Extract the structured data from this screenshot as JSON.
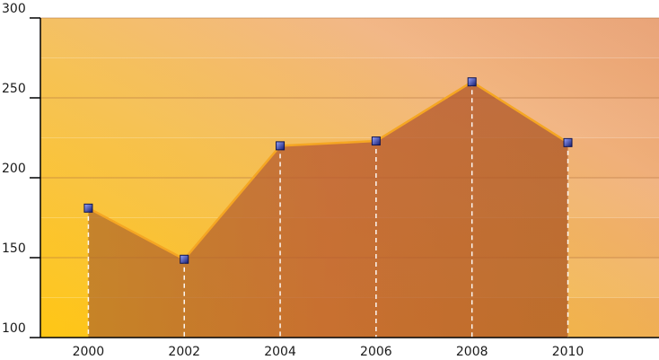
{
  "chart_data": {
    "type": "area",
    "title": "",
    "xlabel": "",
    "ylabel": "",
    "x": [
      2000,
      2002,
      2004,
      2006,
      2008,
      2010
    ],
    "series": [
      {
        "values": [
          181,
          149,
          220,
          223,
          260,
          222
        ]
      }
    ],
    "xticks": [
      "2000",
      "2002",
      "2004",
      "2006",
      "2008",
      "2010"
    ],
    "yticks": [
      "100",
      "150",
      "200",
      "250",
      "300"
    ],
    "ylim": [
      100,
      300
    ],
    "grid": true,
    "colors": {
      "line": "#f5a623",
      "marker": "#1d2a8f",
      "drop_line": "#ffffff",
      "area_fill": "#b5552a",
      "background_left": "#ffc51c",
      "background_right": "#e2864a"
    }
  }
}
